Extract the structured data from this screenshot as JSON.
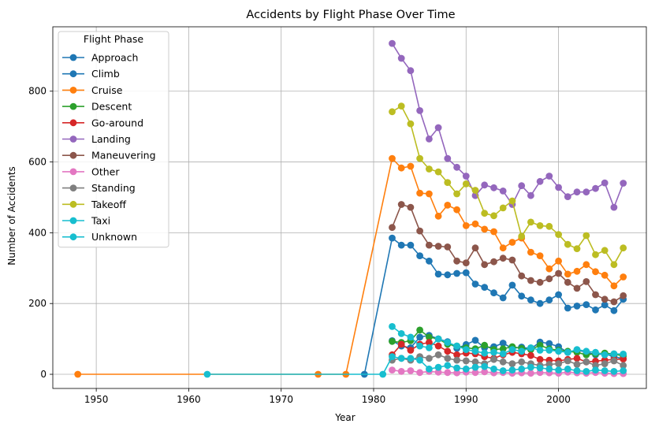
{
  "chart_data": {
    "type": "line",
    "title": "Accidents by Flight Phase Over Time",
    "xlabel": "Year",
    "ylabel": "Number of Accidents",
    "xlim": [
      1945.3,
      2009.5
    ],
    "ylim": [
      -40,
      982
    ],
    "x_ticks": [
      1950,
      1960,
      1970,
      1980,
      1990,
      2000
    ],
    "y_ticks": [
      0,
      200,
      400,
      600,
      800
    ],
    "grid": true,
    "legend": {
      "title": "Flight Phase",
      "position": "upper-left"
    },
    "series": [
      {
        "name": "Approach",
        "color": "#1f77b4",
        "x": [
          1979,
          1982,
          1983,
          1984,
          1985,
          1986,
          1987,
          1988,
          1989,
          1990,
          1991,
          1992,
          1993,
          1994,
          1995,
          1996,
          1997,
          1998,
          1999,
          2000,
          2001,
          2002,
          2003,
          2004,
          2005,
          2006,
          2007
        ],
        "y": [
          0,
          385,
          365,
          365,
          335,
          320,
          283,
          281,
          285,
          287,
          255,
          246,
          230,
          216,
          252,
          221,
          210,
          200,
          210,
          225,
          187,
          193,
          197,
          182,
          196,
          180,
          212
        ]
      },
      {
        "name": "Climb",
        "color": "#1f77b4",
        "x": [
          1982,
          1983,
          1984,
          1985,
          1986,
          1987,
          1988,
          1989,
          1990,
          1991,
          1992,
          1993,
          1994,
          1995,
          1996,
          1997,
          1998,
          1999,
          2000,
          2001,
          2002,
          2003,
          2004,
          2005,
          2006,
          2007
        ],
        "y": [
          95,
          80,
          75,
          105,
          110,
          100,
          92,
          73,
          84,
          96,
          75,
          78,
          88,
          73,
          77,
          72,
          91,
          87,
          78,
          62,
          68,
          63,
          55,
          58,
          50,
          44
        ]
      },
      {
        "name": "Cruise",
        "color": "#ff7f0e",
        "x": [
          1948,
          1974,
          1977,
          1982,
          1983,
          1984,
          1985,
          1986,
          1987,
          1988,
          1989,
          1990,
          1991,
          1992,
          1993,
          1994,
          1995,
          1996,
          1997,
          1998,
          1999,
          2000,
          2001,
          2002,
          2003,
          2004,
          2005,
          2006,
          2007
        ],
        "y": [
          0,
          0,
          0,
          610,
          583,
          588,
          512,
          510,
          447,
          478,
          465,
          420,
          425,
          410,
          403,
          357,
          373,
          385,
          345,
          335,
          298,
          320,
          283,
          291,
          310,
          290,
          280,
          250,
          275
        ]
      },
      {
        "name": "Descent",
        "color": "#2ca02c",
        "x": [
          1982,
          1983,
          1984,
          1985,
          1986,
          1987,
          1988,
          1989,
          1990,
          1991,
          1992,
          1993,
          1994,
          1995,
          1996,
          1997,
          1998,
          1999,
          2000,
          2001,
          2002,
          2003,
          2004,
          2005,
          2006,
          2007
        ],
        "y": [
          93,
          90,
          95,
          125,
          105,
          100,
          85,
          80,
          75,
          72,
          82,
          70,
          72,
          78,
          73,
          70,
          82,
          72,
          68,
          65,
          62,
          55,
          58,
          60,
          57,
          52
        ]
      },
      {
        "name": "Go-around",
        "color": "#d62728",
        "x": [
          1982,
          1983,
          1984,
          1985,
          1986,
          1987,
          1988,
          1989,
          1990,
          1991,
          1992,
          1993,
          1994,
          1995,
          1996,
          1997,
          1998,
          1999,
          2000,
          2001,
          2002,
          2003,
          2004,
          2005,
          2006,
          2007
        ],
        "y": [
          55,
          85,
          68,
          85,
          90,
          80,
          65,
          55,
          60,
          58,
          50,
          45,
          55,
          62,
          58,
          53,
          42,
          40,
          38,
          42,
          45,
          35,
          37,
          40,
          42,
          43
        ]
      },
      {
        "name": "Landing",
        "color": "#9467bd",
        "x": [
          1982,
          1983,
          1984,
          1985,
          1986,
          1987,
          1988,
          1989,
          1990,
          1991,
          1992,
          1993,
          1994,
          1995,
          1996,
          1997,
          1998,
          1999,
          2000,
          2001,
          2002,
          2003,
          2004,
          2005,
          2006,
          2007
        ],
        "y": [
          935,
          893,
          858,
          745,
          665,
          697,
          610,
          585,
          560,
          505,
          535,
          527,
          518,
          480,
          533,
          505,
          545,
          560,
          528,
          502,
          515,
          515,
          525,
          541,
          472,
          540
        ]
      },
      {
        "name": "Maneuvering",
        "color": "#8c564b",
        "x": [
          1982,
          1983,
          1984,
          1985,
          1986,
          1987,
          1988,
          1989,
          1990,
          1991,
          1992,
          1993,
          1994,
          1995,
          1996,
          1997,
          1998,
          1999,
          2000,
          2001,
          2002,
          2003,
          2004,
          2005,
          2006,
          2007
        ],
        "y": [
          415,
          480,
          472,
          405,
          365,
          362,
          360,
          320,
          315,
          357,
          310,
          318,
          328,
          323,
          278,
          265,
          260,
          270,
          285,
          260,
          243,
          262,
          225,
          212,
          205,
          222
        ]
      },
      {
        "name": "Other",
        "color": "#e377c2",
        "x": [
          1982,
          1983,
          1984,
          1985,
          1986,
          1987,
          1988,
          1989,
          1990,
          1991,
          1992,
          1993,
          1994,
          1995,
          1996,
          1997,
          1998,
          1999,
          2000,
          2001,
          2002,
          2003,
          2004,
          2005,
          2006,
          2007
        ],
        "y": [
          12,
          8,
          10,
          5,
          8,
          6,
          5,
          4,
          6,
          5,
          7,
          4,
          5,
          3,
          4,
          3,
          5,
          4,
          3,
          6,
          4,
          3,
          5,
          3,
          2,
          2
        ]
      },
      {
        "name": "Standing",
        "color": "#7f7f7f",
        "x": [
          1982,
          1983,
          1984,
          1985,
          1986,
          1987,
          1988,
          1989,
          1990,
          1991,
          1992,
          1993,
          1994,
          1995,
          1996,
          1997,
          1998,
          1999,
          2000,
          2001,
          2002,
          2003,
          2004,
          2005,
          2006,
          2007
        ],
        "y": [
          40,
          45,
          40,
          50,
          45,
          55,
          45,
          40,
          38,
          35,
          30,
          42,
          35,
          30,
          35,
          30,
          25,
          28,
          30,
          38,
          28,
          35,
          25,
          30,
          38,
          25
        ]
      },
      {
        "name": "Takeoff",
        "color": "#bcbd22",
        "x": [
          1982,
          1983,
          1984,
          1985,
          1986,
          1987,
          1988,
          1989,
          1990,
          1991,
          1992,
          1993,
          1994,
          1995,
          1996,
          1997,
          1998,
          1999,
          2000,
          2001,
          2002,
          2003,
          2004,
          2005,
          2006,
          2007
        ],
        "y": [
          742,
          758,
          708,
          610,
          580,
          572,
          542,
          510,
          538,
          520,
          455,
          448,
          470,
          490,
          390,
          430,
          420,
          418,
          395,
          367,
          355,
          392,
          338,
          350,
          310,
          357
        ]
      },
      {
        "name": "Taxi",
        "color": "#17becf",
        "x": [
          1962,
          1981,
          1982,
          1983,
          1984,
          1985,
          1986,
          1987,
          1988,
          1989,
          1990,
          1991,
          1992,
          1993,
          1994,
          1995,
          1996,
          1997,
          1998,
          1999,
          2000,
          2001,
          2002,
          2003,
          2004,
          2005,
          2006,
          2007
        ],
        "y": [
          0,
          0,
          50,
          45,
          45,
          40,
          15,
          20,
          25,
          18,
          15,
          20,
          22,
          15,
          10,
          12,
          15,
          20,
          18,
          15,
          12,
          15,
          10,
          8,
          12,
          10,
          8,
          10
        ]
      },
      {
        "name": "Unknown",
        "color": "#17becf",
        "x": [
          1982,
          1983,
          1984,
          1985,
          1986,
          1987,
          1988,
          1989,
          1990,
          1991,
          1992,
          1993,
          1994,
          1995,
          1996,
          1997,
          1998,
          1999,
          2000,
          2001,
          2002,
          2003,
          2004,
          2005,
          2006,
          2007
        ],
        "y": [
          135,
          115,
          105,
          80,
          75,
          100,
          90,
          80,
          70,
          65,
          60,
          62,
          58,
          70,
          65,
          75,
          68,
          68,
          65,
          62,
          70,
          65,
          62,
          55,
          58,
          57
        ]
      }
    ]
  }
}
